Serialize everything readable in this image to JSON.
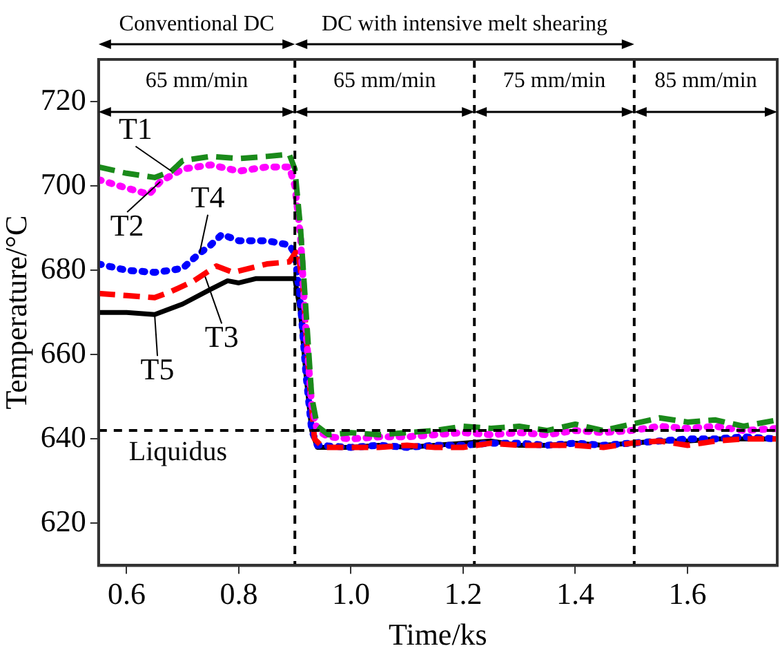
{
  "chart_data": {
    "type": "line",
    "xlabel": "Time/ks",
    "ylabel": "Temperature/°C",
    "xlim": [
      0.55,
      1.76
    ],
    "ylim": [
      610,
      730
    ],
    "xticks": [
      {
        "value": 0.6,
        "label": "0.6"
      },
      {
        "value": 0.8,
        "label": "0.8"
      },
      {
        "value": 1.0,
        "label": "1.0"
      },
      {
        "value": 1.2,
        "label": "1.2"
      },
      {
        "value": 1.4,
        "label": "1.4"
      },
      {
        "value": 1.6,
        "label": "1.6"
      }
    ],
    "yticks": [
      620,
      640,
      660,
      680,
      700,
      720
    ],
    "grid": false,
    "legend": false,
    "marker": "none",
    "ref_lines": [
      {
        "axis": "x",
        "value": 0.9,
        "color": "#000000",
        "line_style": "dashed"
      },
      {
        "axis": "x",
        "value": 1.22,
        "color": "#000000",
        "line_style": "dashed"
      },
      {
        "axis": "x",
        "value": 1.505,
        "color": "#000000",
        "line_style": "dashed"
      },
      {
        "axis": "y",
        "value": 642,
        "label": "Liquidus",
        "color": "#000000",
        "line_style": "dashed"
      }
    ],
    "annotations": [
      "Conventional DC",
      "DC with intensive melt shearing",
      "65 mm/min",
      "65 mm/min",
      "75 mm/min",
      "85 mm/min",
      {
        "text": "T1",
        "x": 0.68,
        "y": 703.5
      },
      {
        "text": "T2",
        "x": 0.66,
        "y": 701
      },
      {
        "text": "T3",
        "x": 0.74,
        "y": 678.5
      },
      {
        "text": "T4",
        "x": 0.73,
        "y": 684
      },
      {
        "text": "T5",
        "x": 0.65,
        "y": 669.5
      }
    ],
    "series": [
      {
        "color": "#1a8a1a",
        "line_style": "dashed",
        "x": [
          0.55,
          0.6,
          0.65,
          0.68,
          0.7,
          0.75,
          0.8,
          0.85,
          0.89,
          0.9,
          0.91,
          0.92,
          0.93,
          0.94,
          0.96,
          1.0,
          1.05,
          1.1,
          1.15,
          1.2,
          1.25,
          1.3,
          1.35,
          1.4,
          1.45,
          1.5,
          1.55,
          1.6,
          1.65,
          1.7,
          1.76
        ],
        "values": [
          704.5,
          703,
          702,
          703.5,
          706,
          707,
          706.5,
          707,
          707.5,
          704,
          690,
          670,
          650,
          643,
          641,
          641.5,
          641,
          641.5,
          642,
          643,
          642.5,
          643,
          642,
          643.5,
          642,
          643.5,
          645,
          644,
          644.5,
          643,
          644.5
        ]
      },
      {
        "color": "#ff00ff",
        "line_style": "dotted",
        "x": [
          0.55,
          0.6,
          0.64,
          0.66,
          0.7,
          0.75,
          0.8,
          0.85,
          0.89,
          0.9,
          0.91,
          0.92,
          0.93,
          0.94,
          0.96,
          1.0,
          1.05,
          1.1,
          1.15,
          1.2,
          1.25,
          1.3,
          1.35,
          1.4,
          1.45,
          1.5,
          1.55,
          1.6,
          1.65,
          1.7,
          1.76
        ],
        "values": [
          701.5,
          699.5,
          698,
          701,
          704,
          705,
          703.5,
          704.5,
          704.5,
          700,
          688,
          665,
          648,
          642,
          640.5,
          640,
          640.5,
          640.5,
          641,
          641.5,
          641,
          641.5,
          641,
          642,
          641.5,
          642,
          643,
          642.5,
          643,
          642,
          642.5
        ]
      },
      {
        "color": "#ff0000",
        "line_style": "dashed",
        "x": [
          0.55,
          0.6,
          0.65,
          0.68,
          0.72,
          0.76,
          0.79,
          0.85,
          0.89,
          0.905,
          0.915,
          0.925,
          0.935,
          0.95,
          1.0,
          1.05,
          1.1,
          1.15,
          1.2,
          1.25,
          1.3,
          1.35,
          1.4,
          1.45,
          1.5,
          1.55,
          1.6,
          1.65,
          1.7,
          1.76
        ],
        "values": [
          674.5,
          674,
          673.5,
          675,
          677.5,
          681,
          679.5,
          681.5,
          682,
          685,
          675,
          655,
          640,
          638,
          638,
          638,
          638.5,
          638,
          638,
          639,
          638.5,
          638.5,
          638.5,
          638,
          639,
          639.5,
          638.5,
          639.5,
          640,
          640
        ]
      },
      {
        "color": "#0000ff",
        "line_style": "dotted",
        "x": [
          0.55,
          0.6,
          0.65,
          0.68,
          0.7,
          0.73,
          0.75,
          0.77,
          0.8,
          0.85,
          0.89,
          0.9,
          0.91,
          0.92,
          0.93,
          0.94,
          1.0,
          1.05,
          1.1,
          1.15,
          1.2,
          1.25,
          1.3,
          1.35,
          1.4,
          1.45,
          1.5,
          1.55,
          1.6,
          1.65,
          1.7,
          1.76
        ],
        "values": [
          681.5,
          680,
          679.5,
          680,
          680.5,
          684,
          686,
          688.5,
          687,
          687,
          686,
          684,
          672,
          655,
          642,
          638.5,
          638,
          638.5,
          638,
          638.5,
          638.5,
          639,
          639,
          638.5,
          639,
          638.5,
          639,
          639.5,
          640,
          640,
          640.5,
          640
        ]
      },
      {
        "color": "#000000",
        "line_style": "solid",
        "x": [
          0.55,
          0.6,
          0.65,
          0.7,
          0.75,
          0.78,
          0.8,
          0.83,
          0.87,
          0.9,
          0.91,
          0.92,
          0.93,
          0.94,
          1.0,
          1.05,
          1.1,
          1.15,
          1.2,
          1.25,
          1.3,
          1.35,
          1.4,
          1.45,
          1.5,
          1.55,
          1.6,
          1.65,
          1.7,
          1.76
        ],
        "values": [
          670,
          670,
          669.5,
          672,
          675.5,
          677.5,
          677,
          678,
          678,
          678,
          670,
          655,
          642,
          638,
          638,
          638.5,
          638,
          638.5,
          639,
          639.5,
          638.5,
          638.5,
          639,
          638.5,
          639,
          639.5,
          639.5,
          640,
          640,
          640
        ]
      }
    ]
  }
}
